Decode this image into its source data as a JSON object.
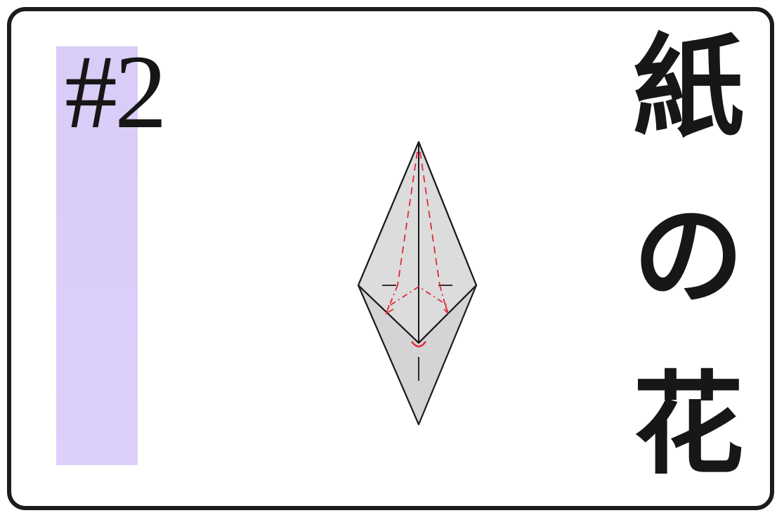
{
  "card": {
    "step_label": "#2",
    "title_chars": [
      "紙",
      "の",
      "花"
    ],
    "accent_color": "#d9ccf7"
  },
  "diagram": {
    "subject": "origami-kite-fold-step",
    "paper_color": "#d4d4d4",
    "line_color": "#1a1a1a",
    "fold_guide_color": "#e0283a"
  }
}
